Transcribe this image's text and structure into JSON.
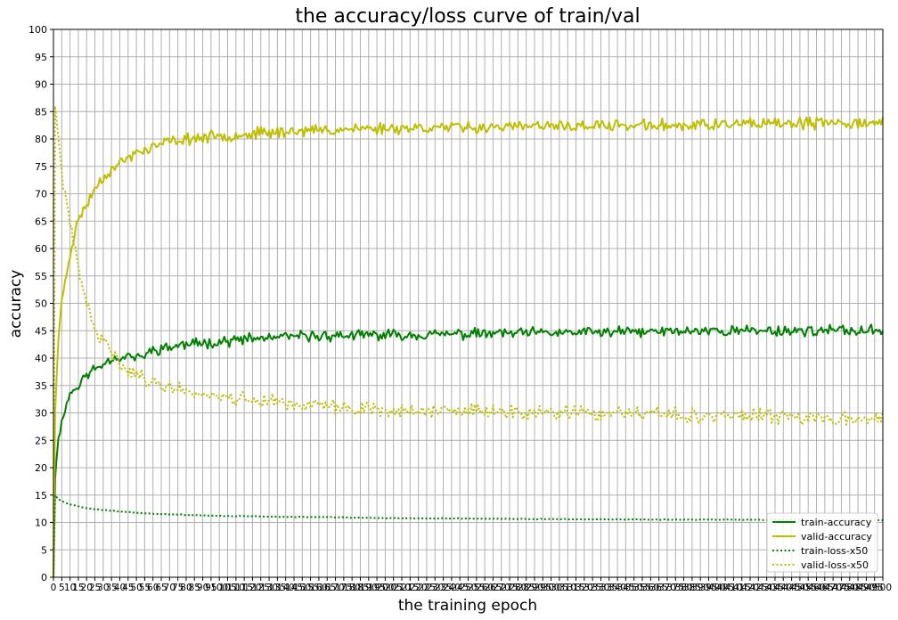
{
  "chart_data": {
    "type": "line",
    "title": "the accuracy/loss curve of train/val",
    "xlabel": "the training epoch",
    "ylabel": "accuracy",
    "xlim": [
      0,
      500
    ],
    "ylim": [
      0,
      100
    ],
    "x_tick_step": 5,
    "y_tick_step": 5,
    "grid": true,
    "legend_position": "lower-right",
    "series": [
      {
        "name": "train-accuracy",
        "color": "#008000",
        "style": "solid",
        "anchors": [
          [
            0,
            0
          ],
          [
            1,
            18
          ],
          [
            3,
            26
          ],
          [
            5,
            28
          ],
          [
            7,
            31
          ],
          [
            10,
            33.5
          ],
          [
            15,
            35
          ],
          [
            20,
            37
          ],
          [
            25,
            38
          ],
          [
            30,
            39
          ],
          [
            35,
            40
          ],
          [
            40,
            40
          ],
          [
            45,
            40.5
          ],
          [
            50,
            40
          ],
          [
            55,
            40.5
          ],
          [
            60,
            41.5
          ],
          [
            70,
            42
          ],
          [
            80,
            42.5
          ],
          [
            100,
            43
          ],
          [
            120,
            43.5
          ],
          [
            150,
            44
          ],
          [
            200,
            44.2
          ],
          [
            250,
            44.4
          ],
          [
            300,
            44.6
          ],
          [
            350,
            44.8
          ],
          [
            400,
            45
          ],
          [
            450,
            45
          ],
          [
            500,
            45
          ]
        ],
        "noise": 1.2,
        "seed": 11
      },
      {
        "name": "valid-accuracy",
        "color": "#bfbf00",
        "style": "solid",
        "anchors": [
          [
            0,
            0
          ],
          [
            1,
            30
          ],
          [
            3,
            44
          ],
          [
            5,
            50
          ],
          [
            7,
            54
          ],
          [
            10,
            59
          ],
          [
            13,
            63
          ],
          [
            16,
            66
          ],
          [
            20,
            68
          ],
          [
            25,
            71
          ],
          [
            30,
            73
          ],
          [
            35,
            74.5
          ],
          [
            40,
            75.5
          ],
          [
            45,
            76.5
          ],
          [
            50,
            77.5
          ],
          [
            55,
            78
          ],
          [
            60,
            78.5
          ],
          [
            70,
            79.5
          ],
          [
            80,
            80
          ],
          [
            100,
            80.5
          ],
          [
            120,
            81
          ],
          [
            150,
            81.5
          ],
          [
            200,
            82
          ],
          [
            300,
            82.3
          ],
          [
            400,
            82.6
          ],
          [
            500,
            83
          ]
        ],
        "noise": 1.3,
        "seed": 23
      },
      {
        "name": "train-loss-x50",
        "color": "#008000",
        "style": "dotted",
        "anchors": [
          [
            0,
            0
          ],
          [
            1,
            15
          ],
          [
            3,
            14.2
          ],
          [
            10,
            13.3
          ],
          [
            20,
            12.6
          ],
          [
            40,
            12
          ],
          [
            60,
            11.6
          ],
          [
            100,
            11.2
          ],
          [
            150,
            11
          ],
          [
            200,
            10.8
          ],
          [
            300,
            10.6
          ],
          [
            400,
            10.5
          ],
          [
            500,
            10.4
          ]
        ],
        "noise": 0.08,
        "seed": 5
      },
      {
        "name": "valid-loss-x50",
        "color": "#bfbf00",
        "style": "dotted",
        "anchors": [
          [
            0,
            0
          ],
          [
            1,
            86
          ],
          [
            3,
            80
          ],
          [
            5,
            74
          ],
          [
            7,
            70
          ],
          [
            10,
            64
          ],
          [
            13,
            60
          ],
          [
            16,
            55
          ],
          [
            20,
            50
          ],
          [
            25,
            45
          ],
          [
            30,
            43
          ],
          [
            35,
            41
          ],
          [
            40,
            39
          ],
          [
            45,
            38
          ],
          [
            50,
            37
          ],
          [
            60,
            35.5
          ],
          [
            80,
            34
          ],
          [
            100,
            33
          ],
          [
            150,
            31.5
          ],
          [
            200,
            30.5
          ],
          [
            300,
            30
          ],
          [
            400,
            29.5
          ],
          [
            500,
            29
          ]
        ],
        "noise": 1.6,
        "seed": 41
      }
    ]
  }
}
